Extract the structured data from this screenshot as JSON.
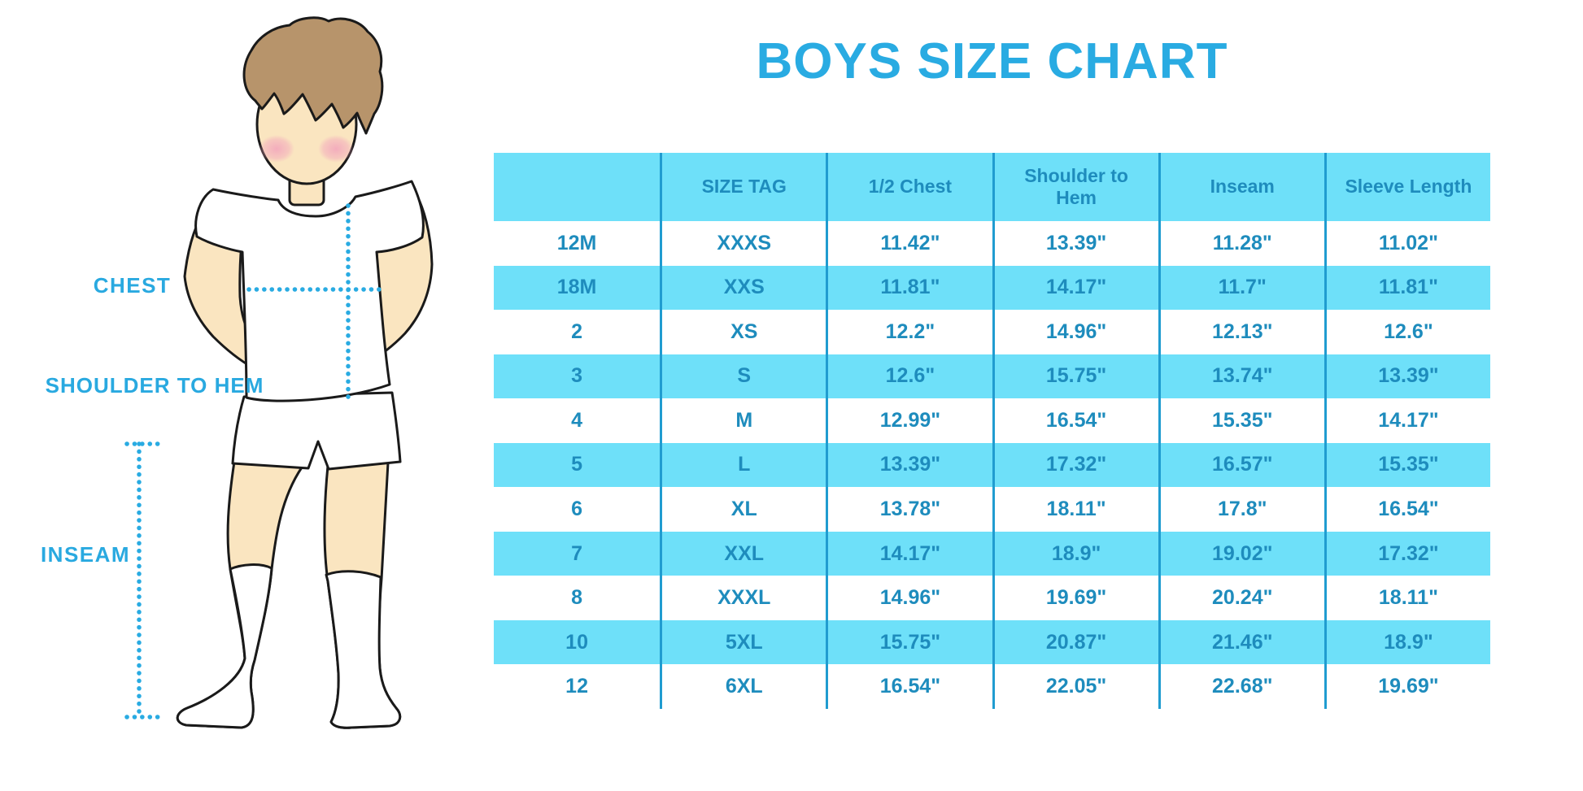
{
  "title": "BOYS SIZE CHART",
  "figure": {
    "labels": {
      "chest": "CHEST",
      "shoulder_to_hem": "SHOULDER TO HEM",
      "inseam": "INSEAM"
    }
  },
  "chart_data": {
    "type": "table",
    "title": "BOYS SIZE CHART",
    "columns": [
      "",
      "SIZE TAG",
      "1/2 Chest",
      "Shoulder to Hem",
      "Inseam",
      "Sleeve Length"
    ],
    "rows": [
      [
        "12M",
        "XXXS",
        "11.42\"",
        "13.39\"",
        "11.28\"",
        "11.02\""
      ],
      [
        "18M",
        "XXS",
        "11.81\"",
        "14.17\"",
        "11.7\"",
        "11.81\""
      ],
      [
        "2",
        "XS",
        "12.2\"",
        "14.96\"",
        "12.13\"",
        "12.6\""
      ],
      [
        "3",
        "S",
        "12.6\"",
        "15.75\"",
        "13.74\"",
        "13.39\""
      ],
      [
        "4",
        "M",
        "12.99\"",
        "16.54\"",
        "15.35\"",
        "14.17\""
      ],
      [
        "5",
        "L",
        "13.39\"",
        "17.32\"",
        "16.57\"",
        "15.35\""
      ],
      [
        "6",
        "XL",
        "13.78\"",
        "18.11\"",
        "17.8\"",
        "16.54\""
      ],
      [
        "7",
        "XXL",
        "14.17\"",
        "18.9\"",
        "19.02\"",
        "17.32\""
      ],
      [
        "8",
        "XXXL",
        "14.96\"",
        "19.69\"",
        "20.24\"",
        "18.11\""
      ],
      [
        "10",
        "5XL",
        "15.75\"",
        "20.87\"",
        "21.46\"",
        "18.9\""
      ],
      [
        "12",
        "6XL",
        "16.54\"",
        "22.05\"",
        "22.68\"",
        "19.69\""
      ]
    ],
    "units": "inches",
    "row_striping": [
      "white",
      "cyan"
    ],
    "grid": "vertical-dividers-only",
    "legend_position": "none"
  },
  "colors": {
    "title_blue": "#29ABE2",
    "label_blue": "#29A9E0",
    "band_cyan": "#6EE0F9",
    "table_text": "#1E8CBD",
    "divider_blue": "#209CD0",
    "dotted_line": "#29ABE2",
    "skin": "#FAE5C0",
    "hair": "#B7946B",
    "outline": "#1A1A1A",
    "blush": "#F2A3BC"
  }
}
